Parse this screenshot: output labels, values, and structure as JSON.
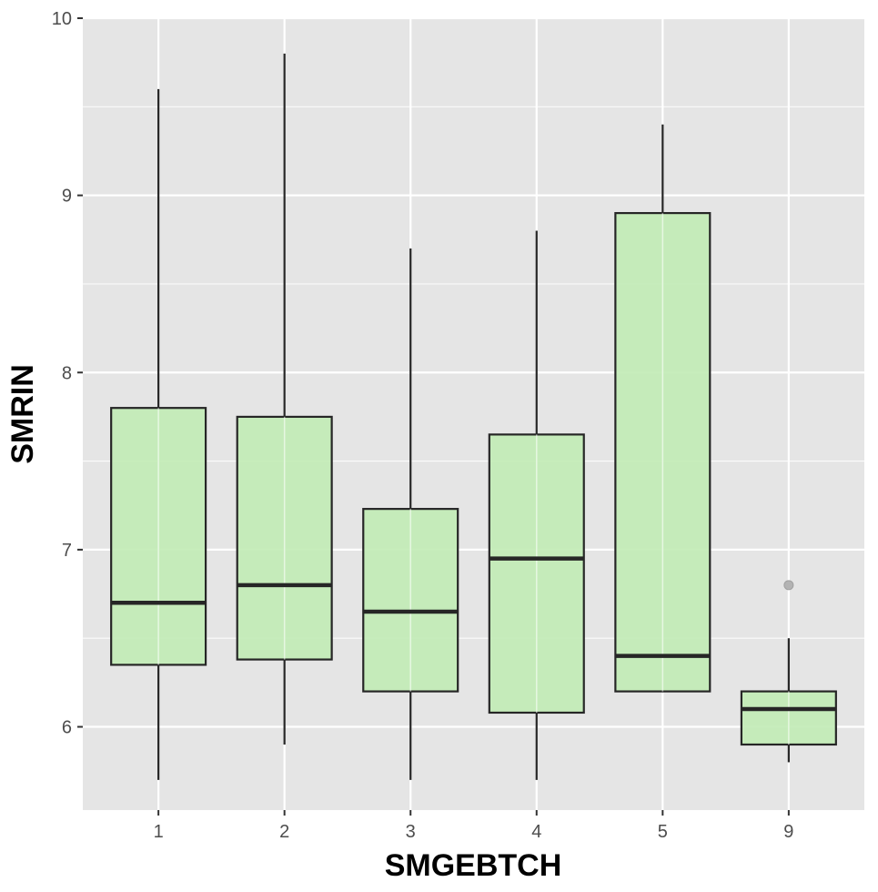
{
  "chart_data": {
    "type": "boxplot",
    "xlabel": "SMGEBTCH",
    "ylabel": "SMRIN",
    "ylim": [
      5.53,
      10
    ],
    "y_ticks": [
      6,
      7,
      8,
      9,
      10
    ],
    "y_minor_ticks": [
      6.5,
      7.5,
      8.5,
      9.5
    ],
    "grid": true,
    "legend": "none",
    "colors": {
      "panel": "#e5e5e5",
      "grid": "#ffffff",
      "box_fill": "#c2ecb6",
      "box_stroke": "#262626",
      "outlier": "#b3b3b3",
      "tick_text": "#4d4d4d"
    },
    "categories": [
      "1",
      "2",
      "3",
      "4",
      "5",
      "9"
    ],
    "boxes": [
      {
        "category": "1",
        "whisker_low": 5.7,
        "q1": 6.35,
        "median": 6.7,
        "q3": 7.8,
        "whisker_high": 9.6,
        "outliers": []
      },
      {
        "category": "2",
        "whisker_low": 5.9,
        "q1": 6.38,
        "median": 6.8,
        "q3": 7.75,
        "whisker_high": 9.8,
        "outliers": []
      },
      {
        "category": "3",
        "whisker_low": 5.7,
        "q1": 6.2,
        "median": 6.65,
        "q3": 7.23,
        "whisker_high": 8.7,
        "outliers": []
      },
      {
        "category": "4",
        "whisker_low": 5.7,
        "q1": 6.08,
        "median": 6.95,
        "q3": 7.65,
        "whisker_high": 8.8,
        "outliers": []
      },
      {
        "category": "5",
        "whisker_low": 6.2,
        "q1": 6.2,
        "median": 6.4,
        "q3": 8.9,
        "whisker_high": 9.4,
        "outliers": []
      },
      {
        "category": "9",
        "whisker_low": 5.8,
        "q1": 5.9,
        "median": 6.1,
        "q3": 6.2,
        "whisker_high": 6.5,
        "outliers": [
          6.8
        ]
      }
    ]
  }
}
